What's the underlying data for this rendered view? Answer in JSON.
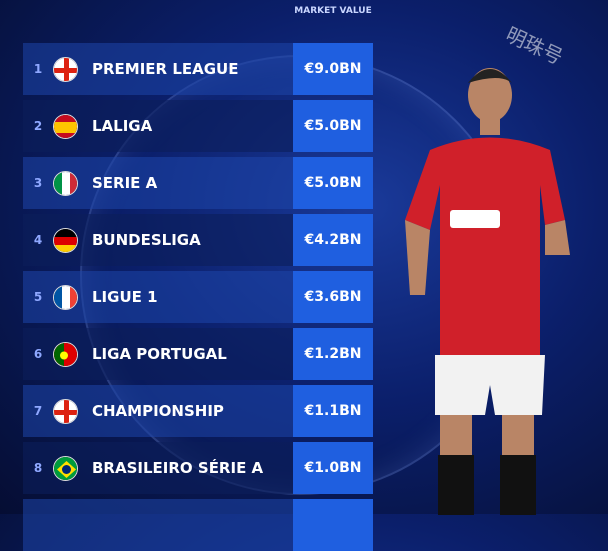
{
  "header": {
    "column_label": "MARKET VALUE"
  },
  "watermark": "明珠号",
  "rows": [
    {
      "rank": "1",
      "flag": "england",
      "name": "PREMIER LEAGUE",
      "value": "€9.0BN"
    },
    {
      "rank": "2",
      "flag": "spain",
      "name": "LALIGA",
      "value": "€5.0BN"
    },
    {
      "rank": "3",
      "flag": "italy",
      "name": "SERIE A",
      "value": "€5.0BN"
    },
    {
      "rank": "4",
      "flag": "germany",
      "name": "BUNDESLIGA",
      "value": "€4.2BN"
    },
    {
      "rank": "5",
      "flag": "france",
      "name": "LIGUE 1",
      "value": "€3.6BN"
    },
    {
      "rank": "6",
      "flag": "portugal",
      "name": "LIGA PORTUGAL",
      "value": "€1.2BN"
    },
    {
      "rank": "7",
      "flag": "england",
      "name": "CHAMPIONSHIP",
      "value": "€1.1BN"
    },
    {
      "rank": "8",
      "flag": "brazil",
      "name": "BRASILEIRO SÉRIE A",
      "value": "€1.0BN"
    }
  ],
  "colors": {
    "value_box": "#1f5fe0",
    "background": "#0b1f6b",
    "shirt": "#d0202a"
  }
}
